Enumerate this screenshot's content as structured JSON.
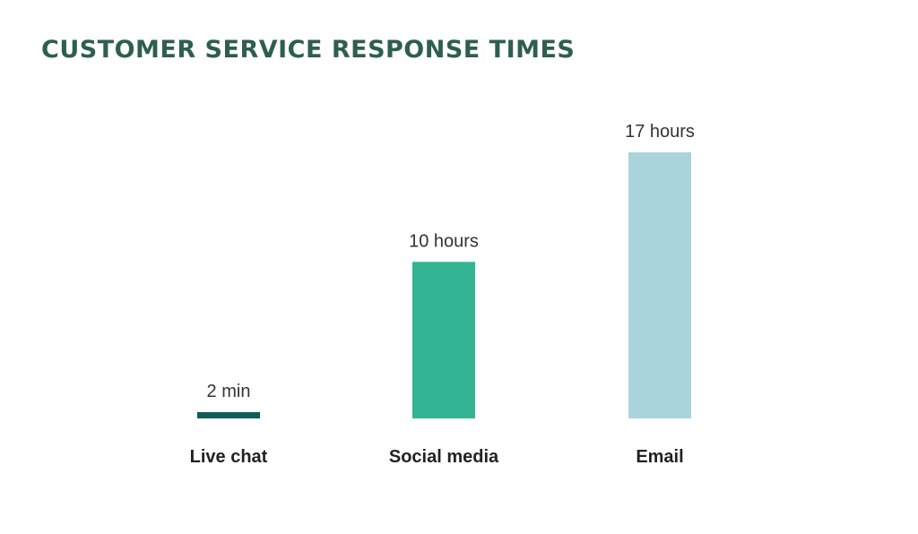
{
  "chart_data": {
    "type": "bar",
    "title": "CUSTOMER SERVICE RESPONSE TIMES",
    "xlabel": "",
    "ylabel": "",
    "unit": "hours",
    "categories": [
      "Live chat",
      "Social media",
      "Email"
    ],
    "values": [
      0.033,
      10,
      17
    ],
    "value_labels": [
      "2 min",
      "10 hours",
      "17 hours"
    ],
    "colors": [
      "#0f5e57",
      "#33b593",
      "#a9d4dc"
    ],
    "ylim": [
      0,
      17
    ],
    "grid": false,
    "legend": "none"
  },
  "colors": {
    "title": "#2f5e50",
    "text": "#333333"
  }
}
